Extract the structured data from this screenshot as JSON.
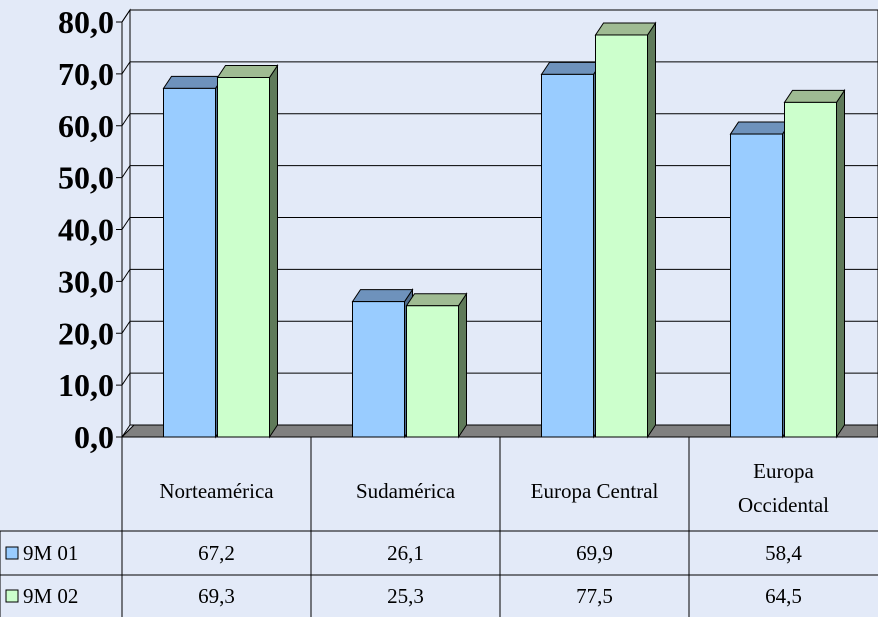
{
  "chart_data": {
    "type": "bar",
    "categories": [
      [
        "Norteamérica"
      ],
      [
        "Sudamérica"
      ],
      [
        "Europa Central"
      ],
      [
        "Europa",
        "Occidental"
      ]
    ],
    "series": [
      {
        "name": "9M 01",
        "values": [
          67.2,
          26.1,
          69.9,
          58.4
        ]
      },
      {
        "name": "9M 02",
        "values": [
          69.3,
          25.3,
          77.5,
          64.5
        ]
      }
    ],
    "series_labels": [
      [
        "67,2",
        "26,1",
        "69,9",
        "58,4"
      ],
      [
        "69,3",
        "25,3",
        "77,5",
        "64,5"
      ]
    ],
    "y_ticks": [
      "0,0",
      "10,0",
      "20,0",
      "30,0",
      "40,0",
      "50,0",
      "60,0",
      "70,0",
      "80,0"
    ],
    "ylim": [
      0,
      80
    ],
    "grid": true,
    "legend": "data-table",
    "title": "",
    "xlabel": "",
    "ylabel": ""
  },
  "colors": {
    "background": "#E3EAF8",
    "series_front": [
      "#99CCFF",
      "#CCFFCC"
    ],
    "series_top": [
      "#6E92BC",
      "#9FBB93"
    ],
    "series_side": [
      "#4F6C8C",
      "#5F7A5A"
    ],
    "floor": "#808080"
  }
}
